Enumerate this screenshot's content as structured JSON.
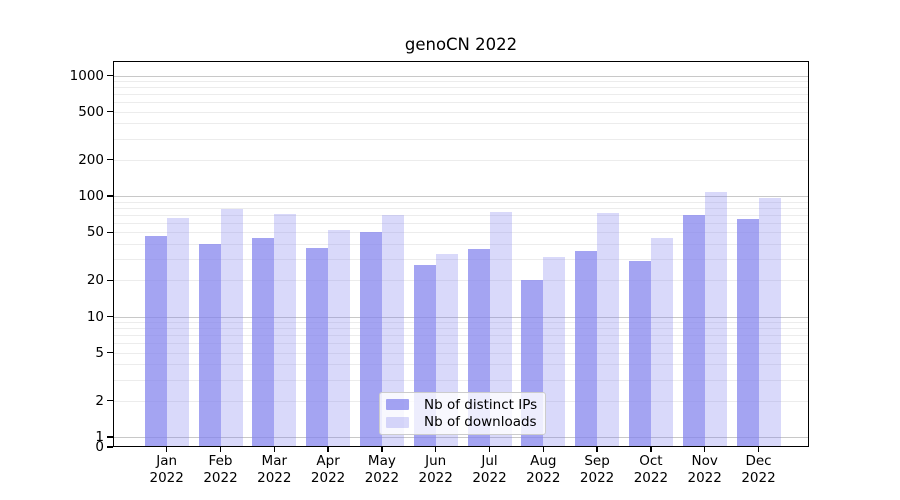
{
  "figure": {
    "title": "genoCN 2022"
  },
  "chart_data": {
    "type": "bar",
    "title": "genoCN 2022",
    "yscale": "log",
    "ylim": [
      0,
      1320
    ],
    "grid": true,
    "categories": [
      "Jan",
      "Feb",
      "Mar",
      "Apr",
      "May",
      "Jun",
      "Jul",
      "Aug",
      "Sep",
      "Oct",
      "Nov",
      "Dec"
    ],
    "category_year": "2022",
    "yticks": [
      1000,
      500,
      200,
      100,
      50,
      20,
      10,
      5,
      2,
      1,
      0
    ],
    "series": [
      {
        "name": "Nb of distinct IPs",
        "values": [
          47,
          40,
          45,
          37,
          50,
          27,
          36,
          20,
          35,
          29,
          70,
          65
        ]
      },
      {
        "name": "Nb of downloads",
        "values": [
          66,
          78,
          71,
          52,
          70,
          33,
          73,
          31,
          72,
          45,
          108,
          96
        ]
      }
    ],
    "legend": {
      "position": "lower center",
      "entries": [
        "Nb of distinct IPs",
        "Nb of downloads"
      ]
    }
  },
  "colors": {
    "bar_base": "#8181ed",
    "bar_ips_alpha": 0.72,
    "bar_downloads_alpha": 0.3,
    "bar_ips_rendered": "#a4a4f1",
    "bar_downloads_rendered": "#d9d9fa",
    "grid_major": "#c8c8c8",
    "grid_minor": "#ececec",
    "axis": "#000000",
    "text": "#000000",
    "legend_border": "#cccccc",
    "legend_bg": "rgba(255,255,255,0.8)"
  }
}
